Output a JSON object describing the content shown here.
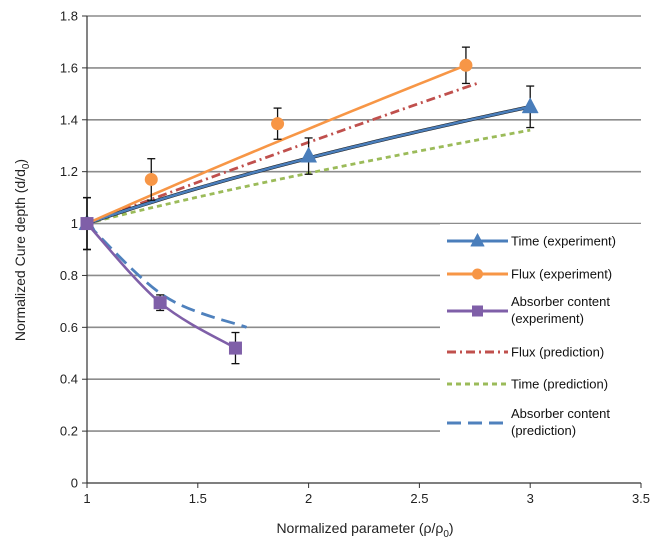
{
  "chart_data": {
    "type": "line",
    "title": "",
    "xlabel": "Normalized  parameter (ρ/ρ",
    "xlabel_sub": "0",
    "xlabel_tail": ")",
    "ylabel": "Normalized  Cure depth (d/d",
    "ylabel_sub": "0",
    "ylabel_tail": ")",
    "xlim": [
      1,
      3.5
    ],
    "ylim": [
      0,
      1.8
    ],
    "x_ticks": [
      "1",
      "1.5",
      "2",
      "2.5",
      "3",
      "3.5"
    ],
    "y_ticks": [
      "0",
      "0.2",
      "0.4",
      "0.6",
      "0.8",
      "1",
      "1.2",
      "1.4",
      "1.6",
      "1.8"
    ],
    "grid": "horizontal",
    "legend_position": "right",
    "series": [
      {
        "name": "Time (experiment)",
        "kind": "experiment",
        "marker": "triangle",
        "color": "#4a7ebb",
        "x": [
          1,
          2,
          3
        ],
        "y": [
          1.0,
          1.26,
          1.45
        ],
        "err": [
          0.1,
          0.07,
          0.08
        ],
        "curve_exponent": 0.54
      },
      {
        "name": "Flux (experiment)",
        "kind": "experiment",
        "marker": "circle",
        "color": "#f79646",
        "x": [
          1,
          1.29,
          1.86,
          2.71
        ],
        "y": [
          1.0,
          1.17,
          1.385,
          1.61
        ],
        "err": [
          0.1,
          0.08,
          0.06,
          0.07
        ],
        "curve_exponent": 0.88
      },
      {
        "name": "Absorber content (experiment)",
        "name_lines": [
          "Absorber content",
          "(experiment)"
        ],
        "kind": "experiment",
        "marker": "square",
        "color": "#7f5fa8",
        "x": [
          1,
          1.33,
          1.67
        ],
        "y": [
          1.0,
          0.695,
          0.52
        ],
        "err": [
          0.1,
          0.03,
          0.06
        ],
        "curve": "smooth"
      },
      {
        "name": "Flux (prediction)",
        "kind": "prediction",
        "dash": "9,4,2,4",
        "color": "#c0504d",
        "x": [
          1,
          2.76
        ],
        "y": [
          1.0,
          1.54
        ],
        "curve_exponent": 0.9
      },
      {
        "name": "Time (prediction)",
        "kind": "prediction",
        "dash": "5,4",
        "color": "#9bbb59",
        "x": [
          1,
          3
        ],
        "y": [
          1.0,
          1.36
        ],
        "curve_exponent": 0.7
      },
      {
        "name": "Absorber content (prediction)",
        "name_lines": [
          "Absorber content",
          "(prediction)"
        ],
        "kind": "prediction",
        "dash": "14,7",
        "color": "#4f81bd",
        "x": [
          1,
          1.35,
          1.72
        ],
        "y": [
          1.0,
          0.72,
          0.6
        ],
        "curve": "smooth"
      }
    ]
  }
}
